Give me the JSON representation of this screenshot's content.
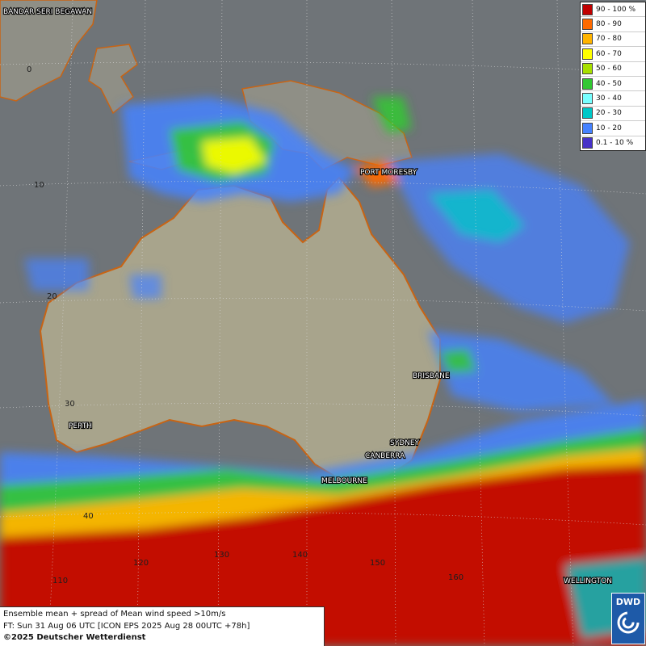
{
  "legend": {
    "items": [
      {
        "label": "90 - 100 %",
        "color": "#c00000"
      },
      {
        "label": "80 - 90",
        "color": "#ff6a00"
      },
      {
        "label": "70 - 80",
        "color": "#ffb400"
      },
      {
        "label": "60 - 70",
        "color": "#ffff00"
      },
      {
        "label": "50 - 60",
        "color": "#a8e000"
      },
      {
        "label": "40 - 50",
        "color": "#32c832"
      },
      {
        "label": "30 - 40",
        "color": "#78ffff"
      },
      {
        "label": "20 - 30",
        "color": "#00c8c8"
      },
      {
        "label": "10 - 20",
        "color": "#4682ff"
      },
      {
        "label": "0.1 - 10 %",
        "color": "#4632c8"
      }
    ]
  },
  "cities": {
    "bandar": "BANDAR SERI BEGAWAN",
    "port_moresby": "PORT MORESBY",
    "brisbane": "BRISBANE",
    "sydney": "SYDNEY",
    "canberra": "CANBERRA",
    "melbourne": "MELBOURNE",
    "perth": "PERTH",
    "wellington": "WELLINGTON"
  },
  "grid_labels": {
    "lat_0": "0",
    "lat_10": "10",
    "lat_20": "20",
    "lat_30": "30",
    "lat_40": "40",
    "lon_120": "120",
    "lon_130": "130",
    "lon_140": "140",
    "lon_150": "150",
    "lon_160": "160",
    "lon_110": "110"
  },
  "info": {
    "line1": "Ensemble mean + spread of Mean wind speed >10m/s",
    "line2": "FT: Sun 31 Aug 06 UTC [ICON EPS 2025 Aug 28 00UTC +78h]",
    "copyright": "©2025 Deutscher Wetterdienst"
  },
  "logo": {
    "text": "DWD"
  },
  "colors": {
    "ocean": "#6f7478",
    "land": "#a8a48c",
    "coast": "#c86414"
  }
}
